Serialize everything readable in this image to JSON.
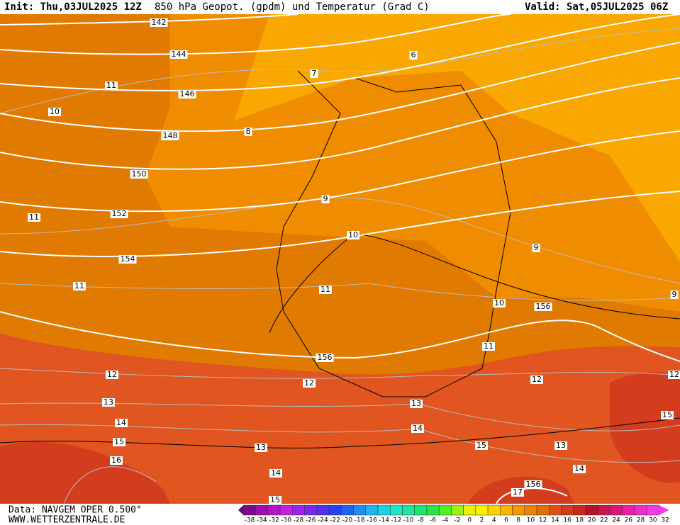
{
  "header": {
    "init": "Init: Thu,03JUL2025 12Z",
    "title": "850 hPa Geopot. (gpdm) und Temperatur (Grad C)",
    "valid": "Valid: Sat,05JUL2025 06Z"
  },
  "geopotential_labels": [
    142,
    144,
    146,
    148,
    150,
    152,
    154,
    156,
    156,
    156
  ],
  "temperature_labels": [
    6,
    7,
    11,
    10,
    8,
    9,
    11,
    10,
    9,
    11,
    11,
    10,
    9,
    11,
    12,
    12,
    12,
    12,
    13,
    13,
    14,
    14,
    15,
    15,
    15,
    13,
    13,
    16,
    14,
    14,
    15,
    17
  ],
  "legend": {
    "labels": [
      -38,
      -34,
      -32,
      -30,
      -28,
      -26,
      -24,
      -22,
      -20,
      -18,
      -16,
      -14,
      -12,
      -10,
      -8,
      -6,
      -4,
      -2,
      0,
      2,
      4,
      6,
      8,
      10,
      12,
      14,
      16,
      18,
      20,
      22,
      24,
      26,
      28,
      30,
      32
    ],
    "colors": [
      "#5a0a6e",
      "#7a0a8a",
      "#9a10a8",
      "#b414c4",
      "#c81ee0",
      "#a020f0",
      "#7828f0",
      "#5032f0",
      "#2840f0",
      "#1e64f0",
      "#1e8cf0",
      "#1eb4f0",
      "#1ed2e6",
      "#1ee6c8",
      "#1ee69a",
      "#1ee66e",
      "#28e646",
      "#50f028",
      "#a0f014",
      "#e6f00a",
      "#fff000",
      "#ffd200",
      "#fcb400",
      "#f59600",
      "#ec8200",
      "#e26e00",
      "#dc5014",
      "#d03c1e",
      "#c8281e",
      "#b41428",
      "#c8144a",
      "#dc1478",
      "#f01ea0",
      "#f02cc8",
      "#f03ce6"
    ]
  },
  "footer": {
    "data": "Data: NAVGEM OPER 0.500°",
    "site": "WWW.WETTERZENTRALE.DE"
  }
}
